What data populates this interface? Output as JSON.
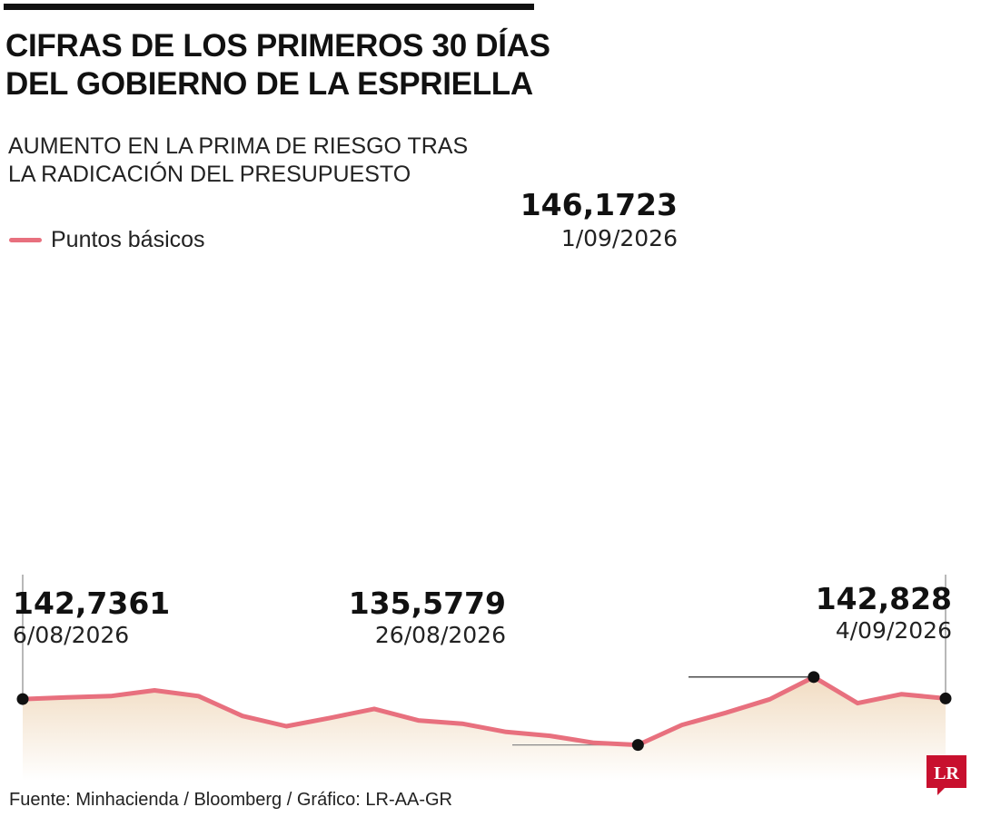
{
  "header": {
    "title_line1": "CIFRAS DE LOS PRIMEROS 30 DÍAS",
    "title_line2": "DEL GOBIERNO DE LA ESPRIELLA"
  },
  "chart_data": {
    "type": "area",
    "subtitle_line1": "AUMENTO EN LA PRIMA DE RIESGO TRAS",
    "subtitle_line2": "LA RADICACIÓN DEL PRESUPUESTO",
    "series": [
      {
        "name": "Puntos básicos",
        "values": [
          142.7361,
          143.0,
          143.2,
          144.1,
          143.2,
          140.1,
          138.5,
          139.8,
          141.2,
          139.4,
          138.9,
          137.6,
          137.0,
          135.9,
          135.5779,
          138.7,
          140.6,
          142.7,
          146.1723,
          142.1,
          143.5,
          142.828
        ]
      }
    ],
    "ylim": [
      130.0,
      150.0
    ],
    "grid": false,
    "legend_position": "top-left",
    "annotations": [
      {
        "index": 0,
        "value": "142,7361",
        "date": "6/08/2026"
      },
      {
        "index": 14,
        "value": "135,5779",
        "date": "26/08/2026"
      },
      {
        "index": 18,
        "value": "146,1723",
        "date": "1/09/2026"
      },
      {
        "index": 21,
        "value": "142,828",
        "date": "4/09/2026"
      }
    ],
    "colors": {
      "line": "#e8707e",
      "fill_top": "#f1dcc2",
      "fill_bottom": "#ffffff",
      "marker": "#111111"
    }
  },
  "footer": {
    "source": "Fuente: Minhacienda / Bloomberg / Gráfico: LR-AA-GR",
    "logo_text": "LR",
    "logo_color": "#c8102e"
  }
}
